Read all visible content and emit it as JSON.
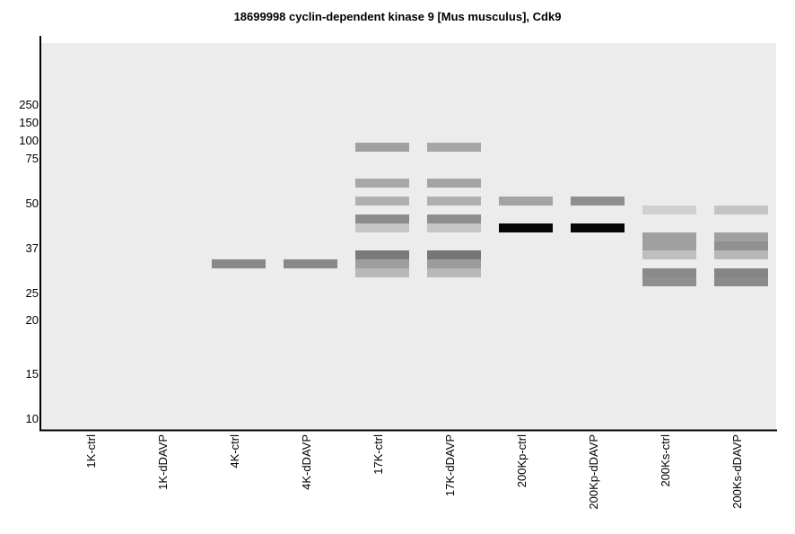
{
  "chart_data": {
    "type": "gel",
    "title": "18699998 cyclin-dependent kinase 9 [Mus musculus], Cdk9",
    "y_ticks": [
      {
        "label": "250",
        "slot": 0
      },
      {
        "label": "150",
        "slot": 2
      },
      {
        "label": "100",
        "slot": 4
      },
      {
        "label": "75",
        "slot": 6
      },
      {
        "label": "50",
        "slot": 11
      },
      {
        "label": "37",
        "slot": 16
      },
      {
        "label": "25",
        "slot": 21
      },
      {
        "label": "20",
        "slot": 24
      },
      {
        "label": "15",
        "slot": 30
      },
      {
        "label": "10",
        "slot": 35
      }
    ],
    "lanes": [
      {
        "label": "1K-ctrl",
        "bands": []
      },
      {
        "label": "1K-dDAVP",
        "bands": []
      },
      {
        "label": "4K-ctrl",
        "bands": [
          {
            "slot": 17,
            "color": "#888888"
          }
        ]
      },
      {
        "label": "4K-dDAVP",
        "bands": [
          {
            "slot": 17,
            "color": "#888888"
          }
        ]
      },
      {
        "label": "17K-ctrl",
        "bands": [
          {
            "slot": 4,
            "color": "#a0a0a0"
          },
          {
            "slot": 8,
            "color": "#a8a8a8"
          },
          {
            "slot": 10,
            "color": "#b0b0b0"
          },
          {
            "slot": 12,
            "color": "#8c8c8c"
          },
          {
            "slot": 13,
            "color": "#c6c6c6"
          },
          {
            "slot": 16,
            "color": "#7a7a7a"
          },
          {
            "slot": 17,
            "color": "#9e9e9e"
          },
          {
            "slot": 18,
            "color": "#b8b8b8"
          }
        ]
      },
      {
        "label": "17K-dDAVP",
        "bands": [
          {
            "slot": 4,
            "color": "#a6a6a6"
          },
          {
            "slot": 8,
            "color": "#a4a4a4"
          },
          {
            "slot": 10,
            "color": "#b0b0b0"
          },
          {
            "slot": 12,
            "color": "#8e8e8e"
          },
          {
            "slot": 13,
            "color": "#c6c6c6"
          },
          {
            "slot": 16,
            "color": "#767676"
          },
          {
            "slot": 17,
            "color": "#9c9c9c"
          },
          {
            "slot": 18,
            "color": "#b8b8b8"
          }
        ]
      },
      {
        "label": "200Kp-ctrl",
        "bands": [
          {
            "slot": 10,
            "color": "#a3a3a3"
          },
          {
            "slot": 13,
            "color": "#080808"
          }
        ]
      },
      {
        "label": "200Kp-dDAVP",
        "bands": [
          {
            "slot": 10,
            "color": "#8e8e8e"
          },
          {
            "slot": 13,
            "color": "#060606"
          }
        ]
      },
      {
        "label": "200Ks-ctrl",
        "bands": [
          {
            "slot": 11,
            "color": "#d0d0d0"
          },
          {
            "slot": 14,
            "color": "#a0a0a0"
          },
          {
            "slot": 15,
            "color": "#a0a0a0"
          },
          {
            "slot": 16,
            "color": "#bfbfbf"
          },
          {
            "slot": 18,
            "color": "#8a8a8a"
          },
          {
            "slot": 19,
            "color": "#8f8f8f"
          }
        ]
      },
      {
        "label": "200Ks-dDAVP",
        "bands": [
          {
            "slot": 11,
            "color": "#c4c4c4"
          },
          {
            "slot": 14,
            "color": "#a1a1a1"
          },
          {
            "slot": 15,
            "color": "#909090"
          },
          {
            "slot": 16,
            "color": "#b8b8b8"
          },
          {
            "slot": 18,
            "color": "#858585"
          },
          {
            "slot": 19,
            "color": "#8b8b8b"
          }
        ]
      }
    ]
  }
}
